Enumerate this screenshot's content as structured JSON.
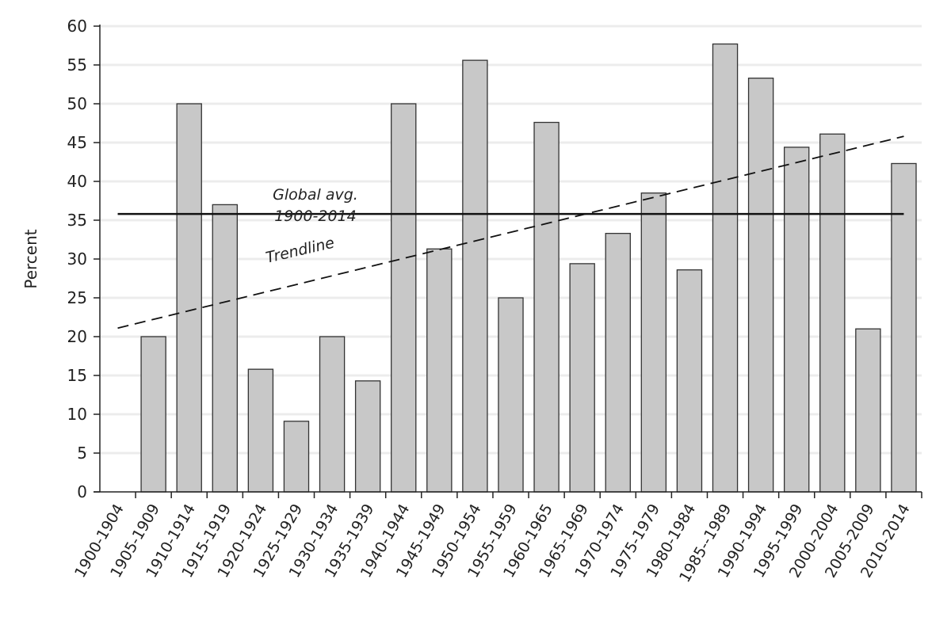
{
  "chart_data": {
    "type": "bar",
    "title": "",
    "xlabel": "",
    "ylabel": "Percent",
    "ylim": [
      0,
      60
    ],
    "yticks": [
      0,
      5,
      10,
      15,
      20,
      25,
      30,
      35,
      40,
      45,
      50,
      55,
      60
    ],
    "grid": true,
    "categories": [
      "1900-1904",
      "1905-1909",
      "1910-1914",
      "1915-1919",
      "1920-1924",
      "1925-1929",
      "1930-1934",
      "1935-1939",
      "1940-1944",
      "1945-1949",
      "1950-1954",
      "1955-1959",
      "1960-1965",
      "1965-1969",
      "1970-1974",
      "1975-1979",
      "1980-1984",
      "1985--1989",
      "1990-1994",
      "1995-1999",
      "2000-2004",
      "2005-2009",
      "2010-2014"
    ],
    "values": [
      0,
      20,
      50,
      37,
      15.8,
      9.1,
      20,
      14.3,
      50,
      31.3,
      55.6,
      25,
      47.6,
      29.4,
      33.3,
      38.5,
      28.6,
      57.7,
      53.3,
      44.4,
      46.1,
      21,
      42.3
    ],
    "bar_color": "#c8c8c8",
    "reference_line": {
      "label_line1": "Global avg.",
      "label_line2": "1900-2014",
      "value": 35.8
    },
    "trendline": {
      "label": "Trendline",
      "start": {
        "category": "1900-1904",
        "value": 21.1
      },
      "end": {
        "category": "2010-2014",
        "value": 45.8
      }
    }
  }
}
